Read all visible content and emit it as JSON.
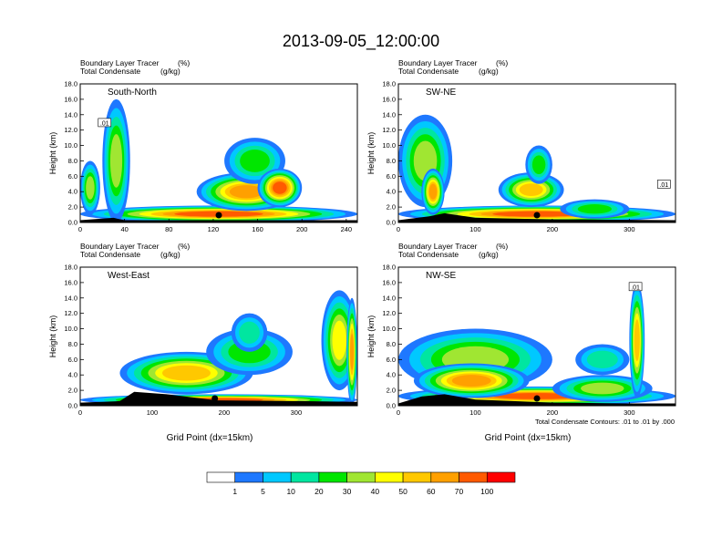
{
  "title": "2013-09-05_12:00:00",
  "units_note": {
    "tracer_label": "Boundary Layer Tracer",
    "tracer_unit": "(%)",
    "condensate_label": "Total Condensate",
    "condensate_unit": "(g/kg)"
  },
  "contour_note": "Total Condensate Contours: .01 to .01 by .000",
  "xlabel": "Grid Point (dx=15km)",
  "ylabel": "Height (km)",
  "colorbar": {
    "colors": [
      "#ffffff",
      "#1e78ff",
      "#00c8ff",
      "#00e6a0",
      "#00e600",
      "#a0e632",
      "#ffff00",
      "#ffc800",
      "#ffa000",
      "#ff5a00",
      "#ff0000"
    ],
    "labels": [
      "1",
      "5",
      "10",
      "20",
      "30",
      "40",
      "50",
      "60",
      "70",
      "100"
    ]
  },
  "chart_data": [
    {
      "type": "heatmap",
      "panel": "South-North",
      "xlim": [
        0,
        250
      ],
      "ylim": [
        0,
        18
      ],
      "xticks": [
        0,
        40,
        80,
        120,
        160,
        200,
        240
      ],
      "yticks": [
        "0.0",
        "2.0",
        "4.0",
        "6.0",
        "8.0",
        "10.0",
        "12.0",
        "14.0",
        "16.0",
        "18.0"
      ],
      "marker_x": 125,
      "contour_label": ".01",
      "contour_label_at": [
        22,
        12.8
      ],
      "blobs": [
        {
          "x": [
            0,
            250
          ],
          "y": [
            0,
            2.2
          ],
          "v": 75
        },
        {
          "x": [
            20,
            45
          ],
          "y": [
            0,
            16
          ],
          "v": 35
        },
        {
          "x": [
            105,
            195
          ],
          "y": [
            1.5,
            6.5
          ],
          "v": 60
        },
        {
          "x": [
            130,
            185
          ],
          "y": [
            5,
            11
          ],
          "v": 25
        },
        {
          "x": [
            0,
            18
          ],
          "y": [
            1,
            8
          ],
          "v": 30
        },
        {
          "x": [
            160,
            200
          ],
          "y": [
            2,
            7
          ],
          "v": 70
        }
      ],
      "terrain": [
        [
          0,
          0.3
        ],
        [
          30,
          0.6
        ],
        [
          40,
          0.3
        ],
        [
          120,
          0.3
        ],
        [
          250,
          0.3
        ]
      ]
    },
    {
      "type": "heatmap",
      "panel": "SW-NE",
      "xlim": [
        0,
        360
      ],
      "ylim": [
        0,
        18
      ],
      "xticks": [
        0,
        100,
        200,
        300
      ],
      "yticks": [
        "0.0",
        "2.0",
        "4.0",
        "6.0",
        "8.0",
        "10.0",
        "12.0",
        "14.0",
        "16.0",
        "18.0"
      ],
      "marker_x": 180,
      "contour_label": ".01",
      "contour_label_at": [
        345,
        4.8
      ],
      "blobs": [
        {
          "x": [
            0,
            360
          ],
          "y": [
            0,
            2.2
          ],
          "v": 75
        },
        {
          "x": [
            0,
            70
          ],
          "y": [
            2,
            14
          ],
          "v": 30
        },
        {
          "x": [
            30,
            60
          ],
          "y": [
            1,
            7
          ],
          "v": 65
        },
        {
          "x": [
            130,
            215
          ],
          "y": [
            2,
            6.5
          ],
          "v": 50
        },
        {
          "x": [
            165,
            200
          ],
          "y": [
            5,
            10
          ],
          "v": 20
        },
        {
          "x": [
            210,
            300
          ],
          "y": [
            0.5,
            3
          ],
          "v": 25
        }
      ],
      "terrain": [
        [
          0,
          0.3
        ],
        [
          40,
          0.8
        ],
        [
          60,
          1.2
        ],
        [
          100,
          0.6
        ],
        [
          200,
          0.4
        ],
        [
          360,
          0.3
        ]
      ]
    },
    {
      "type": "heatmap",
      "panel": "West-East",
      "xlim": [
        0,
        385
      ],
      "ylim": [
        0,
        18
      ],
      "xticks": [
        0,
        100,
        200,
        300
      ],
      "yticks": [
        "0.0",
        "2.0",
        "4.0",
        "6.0",
        "8.0",
        "10.0",
        "12.0",
        "14.0",
        "16.0",
        "18.0"
      ],
      "marker_x": 187,
      "contour_label": "",
      "contour_label_at": [
        0,
        0
      ],
      "blobs": [
        {
          "x": [
            0,
            385
          ],
          "y": [
            0,
            1.5
          ],
          "v": 75
        },
        {
          "x": [
            55,
            240
          ],
          "y": [
            1.5,
            7
          ],
          "v": 55
        },
        {
          "x": [
            175,
            295
          ],
          "y": [
            4,
            10
          ],
          "v": 25
        },
        {
          "x": [
            210,
            260
          ],
          "y": [
            7,
            12
          ],
          "v": 15
        },
        {
          "x": [
            335,
            385
          ],
          "y": [
            2,
            15
          ],
          "v": 40
        },
        {
          "x": [
            370,
            385
          ],
          "y": [
            0,
            14
          ],
          "v": 65
        }
      ],
      "terrain": [
        [
          0,
          0.4
        ],
        [
          55,
          0.6
        ],
        [
          75,
          1.8
        ],
        [
          120,
          1.5
        ],
        [
          190,
          0.7
        ],
        [
          300,
          0.6
        ],
        [
          385,
          0.5
        ]
      ]
    },
    {
      "type": "heatmap",
      "panel": "NW-SE",
      "xlim": [
        0,
        360
      ],
      "ylim": [
        0,
        18
      ],
      "xticks": [
        0,
        100,
        200,
        300
      ],
      "yticks": [
        "0.0",
        "2.0",
        "4.0",
        "6.0",
        "8.0",
        "10.0",
        "12.0",
        "14.0",
        "16.0",
        "18.0"
      ],
      "marker_x": 180,
      "contour_label": ".01",
      "contour_label_at": [
        308,
        15.3
      ],
      "blobs": [
        {
          "x": [
            0,
            360
          ],
          "y": [
            0,
            2.5
          ],
          "v": 75
        },
        {
          "x": [
            0,
            200
          ],
          "y": [
            2,
            10
          ],
          "v": 30
        },
        {
          "x": [
            20,
            170
          ],
          "y": [
            1,
            5.5
          ],
          "v": 60
        },
        {
          "x": [
            200,
            330
          ],
          "y": [
            0.5,
            4
          ],
          "v": 30
        },
        {
          "x": [
            300,
            320
          ],
          "y": [
            1,
            16
          ],
          "v": 55
        },
        {
          "x": [
            230,
            300
          ],
          "y": [
            4,
            8
          ],
          "v": 15
        }
      ],
      "terrain": [
        [
          0,
          0.3
        ],
        [
          30,
          1.2
        ],
        [
          60,
          1.5
        ],
        [
          100,
          0.8
        ],
        [
          200,
          0.4
        ],
        [
          300,
          0.3
        ],
        [
          360,
          0.3
        ]
      ]
    }
  ]
}
